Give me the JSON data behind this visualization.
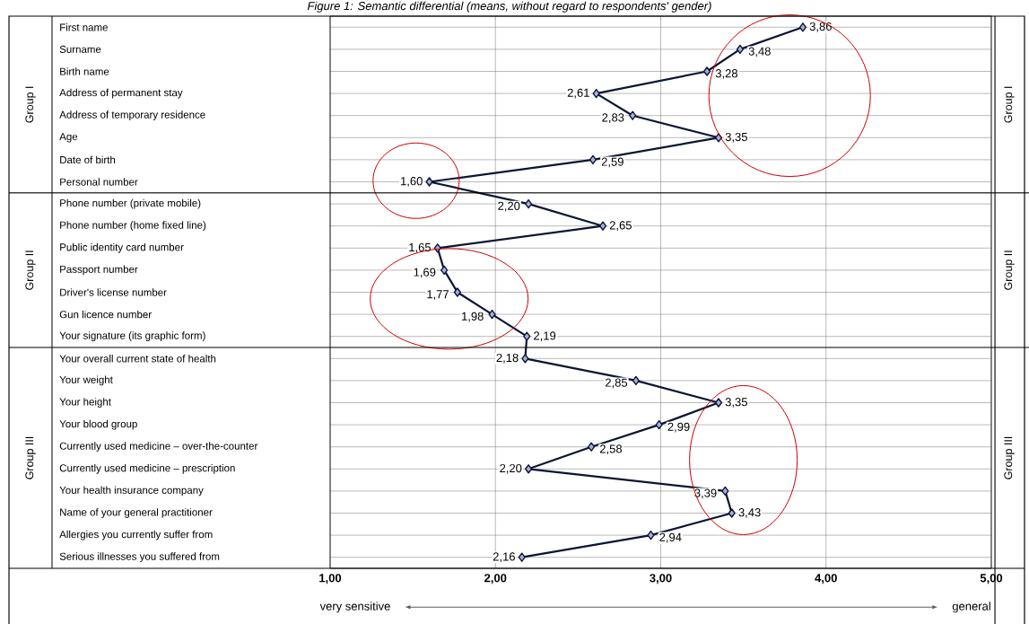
{
  "chart_data": {
    "type": "line",
    "orientation": "horizontal",
    "title": "Figure 1: Semantic differential (means, without regard to respondents' gender)",
    "categories": [
      "First name",
      "Surname",
      "Birth name",
      "Address of permanent stay",
      "Address of temporary residence",
      "Age",
      "Date of birth",
      "Personal number",
      "Phone number (private mobile)",
      "Phone number (home fixed line)",
      "Public identity card number",
      "Passport number",
      "Driver's license number",
      "Gun licence number",
      "Your signature (its graphic form)",
      "Your overall current state of health",
      "Your weight",
      "Your height",
      "Your blood group",
      "Currently used medicine – over-the-counter",
      "Currently used medicine – prescription",
      "Your health insurance company",
      "Name of your general practitioner",
      "Allergies you currently suffer from",
      "Serious illnesses you suffered from"
    ],
    "values": [
      3.86,
      3.48,
      3.28,
      2.61,
      2.83,
      3.35,
      2.59,
      1.6,
      2.2,
      2.65,
      1.65,
      1.69,
      1.77,
      1.98,
      2.19,
      2.18,
      2.85,
      3.35,
      2.99,
      2.58,
      2.2,
      3.39,
      3.43,
      2.94,
      2.16
    ],
    "value_labels": [
      "3,86",
      "3,48",
      "3,28",
      "2,61",
      "2,83",
      "3,35",
      "2,59",
      "1,60",
      "2,20",
      "2,65",
      "1,65",
      "1,69",
      "1,77",
      "1,98",
      "2,19",
      "2,18",
      "2,85",
      "3,35",
      "2,99",
      "2,58",
      "2,20",
      "3,39",
      "3,43",
      "2,94",
      "2,16"
    ],
    "color": "#0b1533",
    "marker": "diamond",
    "line_style": "solid",
    "grid": true,
    "xlim": [
      1,
      5
    ],
    "xticks": [
      {
        "value": 1,
        "label": "1,00"
      },
      {
        "value": 2,
        "label": "2,00"
      },
      {
        "value": 3,
        "label": "3,00"
      },
      {
        "value": 4,
        "label": "4,00"
      },
      {
        "value": 5,
        "label": "5,00"
      }
    ],
    "annotations": [
      "Group I",
      "Group II",
      "Group III",
      "very sensitive",
      "general"
    ]
  }
}
